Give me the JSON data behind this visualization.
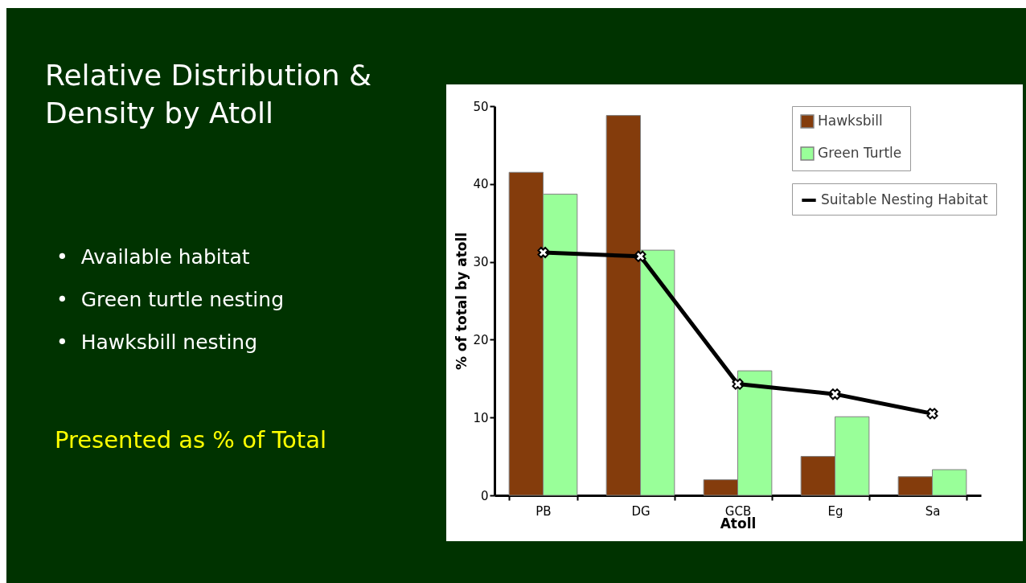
{
  "chart_data": {
    "type": "bar",
    "title": "Relative Distribution & Density by Atoll",
    "subtitle": "Presented as % of Total",
    "annotations": [
      "•  Available habitat",
      "•  Green turtle nesting",
      "•  Hawksbill nesting"
    ],
    "xlabel": "Atoll",
    "ylabel": "% of total by atoll",
    "categories": [
      "PB",
      "DG",
      "GCB",
      "Eg",
      "Sa"
    ],
    "series": [
      {
        "name": "Hawksbill",
        "color": "#843c0c",
        "values": [
          41.5,
          48.8,
          2.0,
          5.0,
          2.4
        ]
      },
      {
        "name": "Green Turtle",
        "color": "#99ff99",
        "values": [
          38.7,
          31.5,
          16.0,
          10.1,
          3.3
        ]
      },
      {
        "name": "Suitable Nesting Habitat",
        "type": "line",
        "color": "#000000",
        "marker": "cross",
        "values": [
          31.2,
          30.7,
          14.3,
          13.0,
          10.5
        ]
      }
    ],
    "ylim": [
      0,
      50
    ],
    "yticks": [
      0,
      10,
      20,
      30,
      40,
      50
    ],
    "grid": false,
    "legend": "top right"
  }
}
